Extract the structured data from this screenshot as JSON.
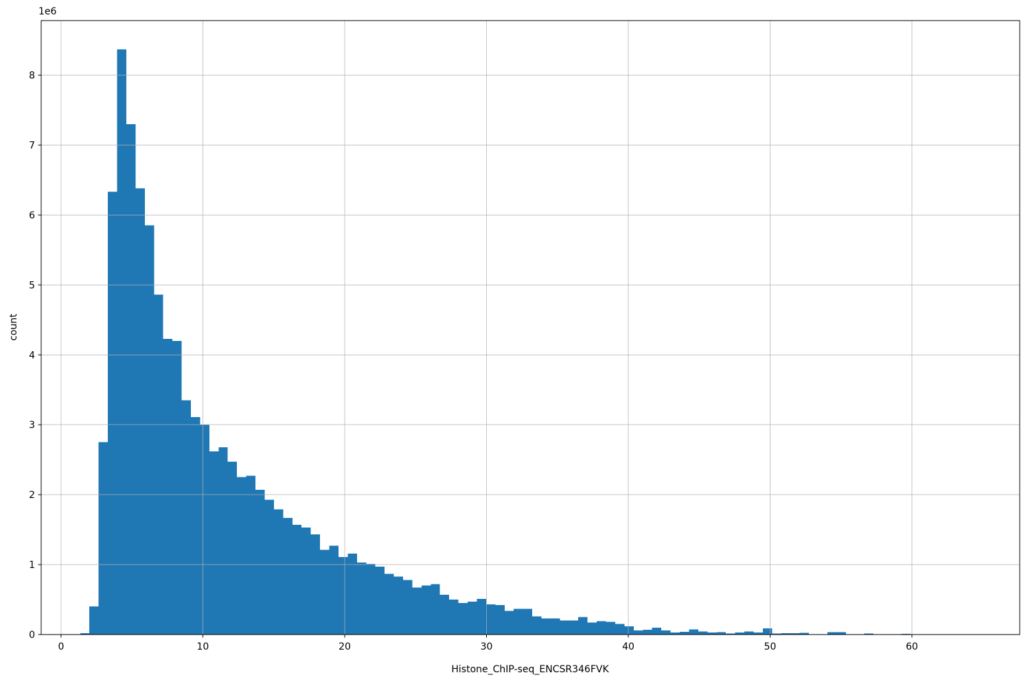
{
  "chart_data": {
    "type": "bar",
    "subtype": "histogram",
    "title": "",
    "xlabel": "Histone_ChIP-seq_ENCSR346FVK",
    "ylabel": "count",
    "y_offset_text": "1e6",
    "bin_start": 1.35,
    "bin_width": 0.6505,
    "counts": [
      20000,
      400000,
      2750000,
      6330000,
      8370000,
      7300000,
      6380000,
      5850000,
      4860000,
      4230000,
      4200000,
      3350000,
      3110000,
      3000000,
      2620000,
      2680000,
      2470000,
      2250000,
      2270000,
      2070000,
      1930000,
      1790000,
      1670000,
      1570000,
      1530000,
      1430000,
      1210000,
      1270000,
      1110000,
      1160000,
      1030000,
      1010000,
      970000,
      870000,
      830000,
      780000,
      670000,
      700000,
      720000,
      570000,
      500000,
      450000,
      470000,
      510000,
      430000,
      420000,
      340000,
      370000,
      370000,
      260000,
      230000,
      230000,
      200000,
      200000,
      250000,
      170000,
      190000,
      180000,
      150000,
      120000,
      60000,
      70000,
      100000,
      60000,
      30000,
      40000,
      75000,
      45000,
      30000,
      35000,
      15000,
      30000,
      45000,
      30000,
      90000,
      15000,
      20000,
      20000,
      25000,
      5000,
      5000,
      35000,
      35000,
      0,
      0,
      15000,
      0,
      0,
      0,
      10000
    ],
    "x_ticks": [
      0,
      10,
      20,
      30,
      40,
      50,
      60
    ],
    "x_tick_labels": [
      "0",
      "10",
      "20",
      "30",
      "40",
      "50",
      "60"
    ],
    "y_ticks": [
      0,
      1000000,
      2000000,
      3000000,
      4000000,
      5000000,
      6000000,
      7000000,
      8000000
    ],
    "y_tick_labels": [
      "0",
      "1",
      "2",
      "3",
      "4",
      "5",
      "6",
      "7",
      "8"
    ],
    "xlim": [
      -1.4,
      67.6
    ],
    "ylim": [
      0,
      8780000
    ],
    "grid": true,
    "grid_over_bars": true,
    "legend_position": "none",
    "colors": {
      "bar": "#1f77b4",
      "grid": "#b0b0b0",
      "spine": "#000000",
      "background": "#ffffff",
      "text": "#000000"
    }
  }
}
